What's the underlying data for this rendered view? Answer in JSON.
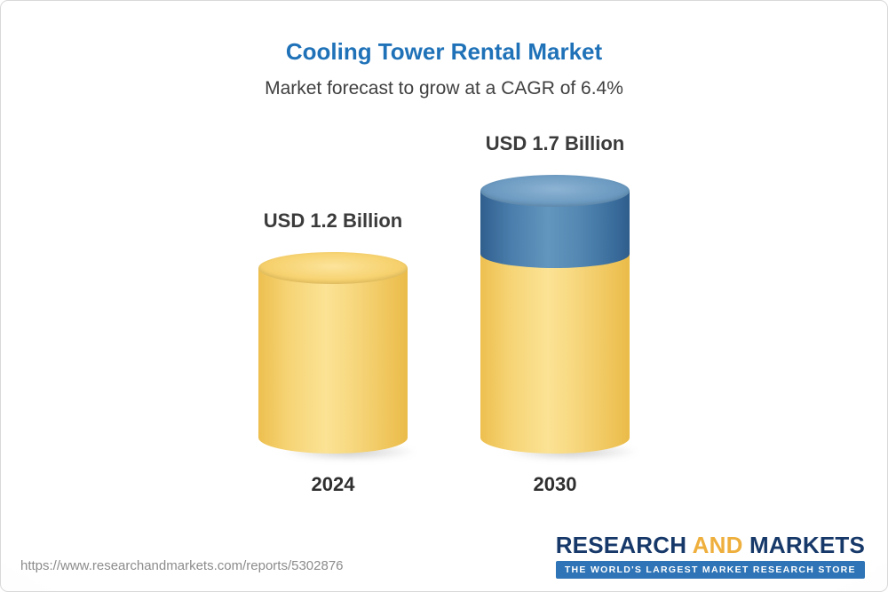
{
  "header": {
    "title": "Cooling Tower Rental Market",
    "subtitle": "Market forecast to grow at a CAGR of 6.4%"
  },
  "chart_data": {
    "type": "bar",
    "title": "Cooling Tower Rental Market",
    "subtitle": "Market forecast to grow at a CAGR of 6.4%",
    "unit": "USD Billion",
    "categories": [
      "2024",
      "2030"
    ],
    "values": [
      1.2,
      1.7
    ],
    "value_labels": [
      "USD 1.2 Billion",
      "USD 1.7 Billion"
    ],
    "cagr": "6.4%",
    "colors": {
      "base": "#F5CE63",
      "growth": "#4D82AE"
    },
    "layout": "3d-cylinder bars; 2030 bar shows yellow base equal to 2024 value with blue growth segment on top; no axes or gridlines"
  },
  "footer": {
    "url": "https://www.researchandmarkets.com/reports/5302876",
    "logo": {
      "part1": "RESEARCH",
      "part2": "AND",
      "part3": "MARKETS",
      "tagline": "THE WORLD'S LARGEST MARKET RESEARCH STORE"
    }
  }
}
